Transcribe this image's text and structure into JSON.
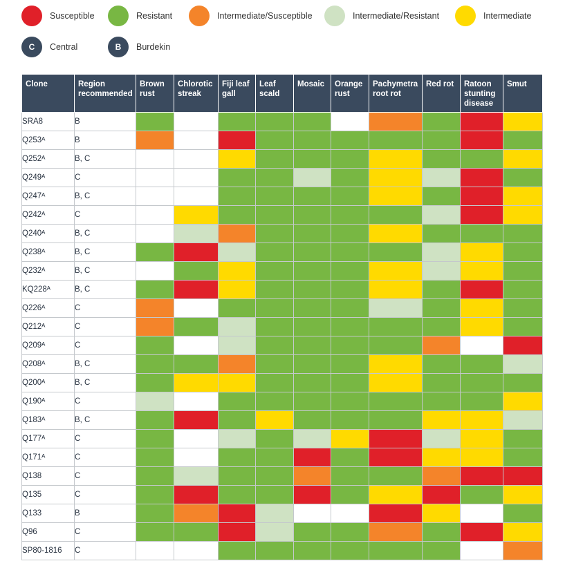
{
  "legend": {
    "rating_items": [
      {
        "label": "Susceptible",
        "color": "#e02029"
      },
      {
        "label": "Resistant",
        "color": "#78b743"
      },
      {
        "label": "Intermediate/Susceptible",
        "color": "#f4842a"
      },
      {
        "label": "Intermediate/Resistant",
        "color": "#cfe2c3"
      },
      {
        "label": "Intermediate",
        "color": "#ffda00"
      }
    ],
    "region_items": [
      {
        "code": "C",
        "label": "Central",
        "color": "#3a4a5e"
      },
      {
        "code": "B",
        "label": "Burdekin",
        "color": "#3a4a5e"
      }
    ]
  },
  "colors": {
    "S": "#e02029",
    "R": "#78b743",
    "IS": "#f4842a",
    "IR": "#cfe2c3",
    "I": "#ffda00",
    "N": "#ffffff",
    "header_bg": "#3a4a5e"
  },
  "table": {
    "headers": [
      "Clone",
      "Region recommended",
      "Brown rust",
      "Chlorotic streak",
      "Fiji leaf gall",
      "Leaf scald",
      "Mosaic",
      "Orange rust",
      "Pachymetra root rot",
      "Red rot",
      "Ratoon stunting disease",
      "Smut"
    ],
    "rows": [
      {
        "clone": "SRA8",
        "region": "B",
        "ratings": [
          "R",
          "N",
          "R",
          "R",
          "R",
          "N",
          "IS",
          "R",
          "S",
          "I"
        ]
      },
      {
        "clone": "Q253ᴬ",
        "region": "B",
        "ratings": [
          "IS",
          "N",
          "S",
          "R",
          "R",
          "R",
          "R",
          "R",
          "S",
          "R"
        ]
      },
      {
        "clone": "Q252ᴬ",
        "region": "B, C",
        "ratings": [
          "N",
          "N",
          "I",
          "R",
          "R",
          "R",
          "I",
          "R",
          "R",
          "I"
        ]
      },
      {
        "clone": "Q249ᴬ",
        "region": "C",
        "ratings": [
          "N",
          "N",
          "R",
          "R",
          "IR",
          "R",
          "I",
          "IR",
          "S",
          "R"
        ]
      },
      {
        "clone": "Q247ᴬ",
        "region": "B, C",
        "ratings": [
          "N",
          "N",
          "R",
          "R",
          "R",
          "R",
          "I",
          "R",
          "S",
          "I"
        ]
      },
      {
        "clone": "Q242ᴬ",
        "region": "C",
        "ratings": [
          "N",
          "I",
          "R",
          "R",
          "R",
          "R",
          "R",
          "IR",
          "S",
          "I"
        ]
      },
      {
        "clone": "Q240ᴬ",
        "region": "B, C",
        "ratings": [
          "N",
          "IR",
          "IS",
          "R",
          "R",
          "R",
          "I",
          "R",
          "R",
          "R"
        ]
      },
      {
        "clone": "Q238ᴬ",
        "region": "B, C",
        "ratings": [
          "R",
          "S",
          "IR",
          "R",
          "R",
          "R",
          "R",
          "IR",
          "I",
          "R"
        ]
      },
      {
        "clone": "Q232ᴬ",
        "region": "B, C",
        "ratings": [
          "N",
          "R",
          "I",
          "R",
          "R",
          "R",
          "I",
          "IR",
          "I",
          "R"
        ]
      },
      {
        "clone": "KQ228ᴬ",
        "region": "B, C",
        "ratings": [
          "R",
          "S",
          "I",
          "R",
          "R",
          "R",
          "I",
          "R",
          "S",
          "R"
        ]
      },
      {
        "clone": "Q226ᴬ",
        "region": "C",
        "ratings": [
          "IS",
          "N",
          "R",
          "R",
          "R",
          "R",
          "IR",
          "R",
          "I",
          "R"
        ]
      },
      {
        "clone": "Q212ᴬ",
        "region": "C",
        "ratings": [
          "IS",
          "R",
          "IR",
          "R",
          "R",
          "R",
          "R",
          "R",
          "I",
          "R"
        ]
      },
      {
        "clone": "Q209ᴬ",
        "region": "C",
        "ratings": [
          "R",
          "N",
          "IR",
          "R",
          "R",
          "R",
          "R",
          "IS",
          "N",
          "S"
        ]
      },
      {
        "clone": "Q208ᴬ",
        "region": "B, C",
        "ratings": [
          "R",
          "R",
          "IS",
          "R",
          "R",
          "R",
          "I",
          "R",
          "R",
          "IR"
        ]
      },
      {
        "clone": "Q200ᴬ",
        "region": "B, C",
        "ratings": [
          "R",
          "I",
          "I",
          "R",
          "R",
          "R",
          "I",
          "R",
          "R",
          "R"
        ]
      },
      {
        "clone": "Q190ᴬ",
        "region": "C",
        "ratings": [
          "IR",
          "N",
          "R",
          "R",
          "R",
          "R",
          "R",
          "R",
          "R",
          "I"
        ]
      },
      {
        "clone": "Q183ᴬ",
        "region": "B, C",
        "ratings": [
          "R",
          "S",
          "R",
          "I",
          "R",
          "R",
          "R",
          "I",
          "I",
          "IR"
        ]
      },
      {
        "clone": "Q177ᴬ",
        "region": "C",
        "ratings": [
          "R",
          "N",
          "IR",
          "R",
          "IR",
          "I",
          "S",
          "IR",
          "I",
          "R"
        ]
      },
      {
        "clone": "Q171ᴬ",
        "region": "C",
        "ratings": [
          "R",
          "N",
          "R",
          "R",
          "S",
          "R",
          "S",
          "I",
          "I",
          "R"
        ]
      },
      {
        "clone": "Q138",
        "region": "C",
        "ratings": [
          "R",
          "IR",
          "R",
          "R",
          "IS",
          "R",
          "R",
          "IS",
          "S",
          "S"
        ]
      },
      {
        "clone": "Q135",
        "region": "C",
        "ratings": [
          "R",
          "S",
          "R",
          "R",
          "S",
          "R",
          "I",
          "S",
          "R",
          "I"
        ]
      },
      {
        "clone": "Q133",
        "region": "B",
        "ratings": [
          "R",
          "IS",
          "S",
          "IR",
          "N",
          "N",
          "S",
          "I",
          "N",
          "R"
        ]
      },
      {
        "clone": "Q96",
        "region": "C",
        "ratings": [
          "R",
          "R",
          "S",
          "IR",
          "R",
          "R",
          "IS",
          "R",
          "S",
          "I"
        ]
      },
      {
        "clone": "SP80-1816",
        "region": "C",
        "ratings": [
          "N",
          "N",
          "R",
          "R",
          "R",
          "R",
          "R",
          "R",
          "N",
          "IS"
        ]
      }
    ]
  }
}
